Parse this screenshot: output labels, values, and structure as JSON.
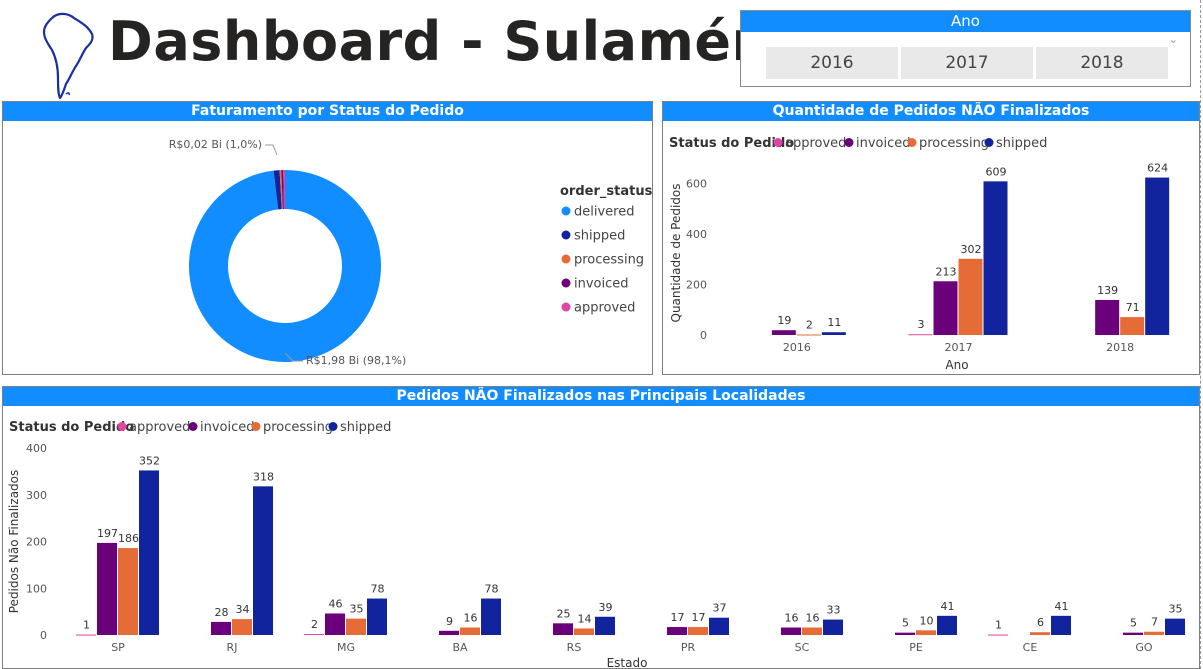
{
  "header": {
    "title": "Dashboard - Sulamérica"
  },
  "slicer": {
    "title": "Ano",
    "items": [
      "2016",
      "2017",
      "2018"
    ]
  },
  "colors": {
    "approved": "#e044a7",
    "invoiced": "#6b007b",
    "processing": "#e66c37",
    "shipped": "#12239e",
    "delivered": "#118dff",
    "header": "#118dff"
  },
  "chart_data": [
    {
      "type": "pie",
      "title": "Faturamento por Status do Pedido",
      "legend_title": "order_status",
      "legend_position": "right",
      "slices": [
        {
          "name": "delivered",
          "value": 98.1,
          "color": "#118dff"
        },
        {
          "name": "shipped",
          "value": 1.0,
          "color": "#12239e"
        },
        {
          "name": "processing",
          "value": 0.3,
          "color": "#e66c37"
        },
        {
          "name": "invoiced",
          "value": 0.3,
          "color": "#6b007b"
        },
        {
          "name": "approved",
          "value": 0.3,
          "color": "#e044a7"
        }
      ],
      "legend": [
        "delivered",
        "shipped",
        "processing",
        "invoiced",
        "approved"
      ],
      "annotations": [
        "R$0,02 Bi (1,0%)",
        "R$1,98 Bi (98,1%)"
      ]
    },
    {
      "type": "bar",
      "title": "Quantidade de Pedidos NÃO Finalizados",
      "legend_title": "Status do Pedido",
      "legend_position": "top-left",
      "xlabel": "Ano",
      "ylabel": "Quantidade de Pedidos",
      "ylim": [
        0,
        650
      ],
      "yticks": [
        "0",
        "200",
        "400",
        "600"
      ],
      "categories": [
        "2016",
        "2017",
        "2018"
      ],
      "series": [
        {
          "name": "approved",
          "values": [
            0,
            3,
            0
          ],
          "labels": [
            "",
            "3",
            ""
          ]
        },
        {
          "name": "invoiced",
          "values": [
            19,
            213,
            139
          ],
          "labels": [
            "19",
            "213",
            "139"
          ]
        },
        {
          "name": "processing",
          "values": [
            2,
            302,
            71
          ],
          "labels": [
            "2",
            "302",
            "71"
          ]
        },
        {
          "name": "shipped",
          "values": [
            11,
            609,
            624
          ],
          "labels": [
            "11",
            "609",
            "624"
          ]
        }
      ]
    },
    {
      "type": "bar",
      "title": "Pedidos NÃO Finalizados nas Principais Localidades",
      "legend_title": "Status do Pedido",
      "legend_position": "top-left",
      "xlabel": "Estado",
      "ylabel": "Pedidos Não Finalizados",
      "ylim": [
        0,
        400
      ],
      "yticks": [
        "0",
        "100",
        "200",
        "300",
        "400"
      ],
      "categories": [
        "SP",
        "RJ",
        "MG",
        "BA",
        "RS",
        "PR",
        "SC",
        "PE",
        "CE",
        "GO"
      ],
      "series": [
        {
          "name": "approved",
          "values": [
            1,
            0,
            2,
            0,
            0,
            0,
            0,
            0,
            1,
            0
          ],
          "labels": [
            "1",
            "",
            "2",
            "",
            "",
            "",
            "",
            "",
            "1",
            ""
          ]
        },
        {
          "name": "invoiced",
          "values": [
            197,
            28,
            46,
            9,
            25,
            17,
            16,
            5,
            0,
            5
          ],
          "labels": [
            "197",
            "28",
            "46",
            "9",
            "25",
            "17",
            "16",
            "5",
            "",
            "5"
          ]
        },
        {
          "name": "processing",
          "values": [
            186,
            34,
            35,
            16,
            14,
            17,
            16,
            10,
            6,
            7
          ],
          "labels": [
            "186",
            "34",
            "35",
            "16",
            "14",
            "17",
            "16",
            "10",
            "6",
            "7"
          ]
        },
        {
          "name": "shipped",
          "values": [
            352,
            318,
            78,
            78,
            39,
            37,
            33,
            41,
            41,
            35
          ],
          "labels": [
            "352",
            "318",
            "78",
            "78",
            "39",
            "37",
            "33",
            "41",
            "41",
            "35"
          ]
        }
      ]
    }
  ]
}
